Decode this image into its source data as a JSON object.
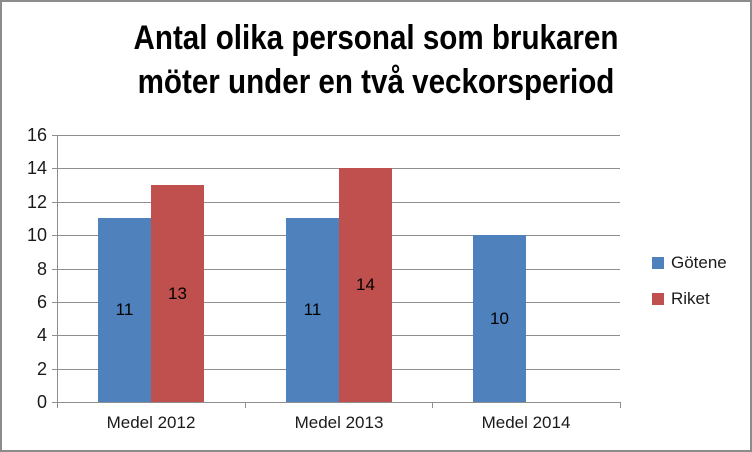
{
  "frame": {
    "border_color": "#8C8C8C",
    "background_color": "#FFFFFF"
  },
  "chart_data": {
    "type": "bar",
    "title": "Antal olika personal som brukaren möter under en två veckorsperiod",
    "title_lines": [
      "Antal olika personal som brukaren",
      "möter under en två veckorsperiod"
    ],
    "categories": [
      "Medel 2012",
      "Medel 2013",
      "Medel 2014"
    ],
    "series": [
      {
        "name": "Götene",
        "color": "#4F81BD",
        "values": [
          11,
          11,
          10
        ]
      },
      {
        "name": "Riket",
        "color": "#C0504D",
        "values": [
          13,
          14,
          null
        ]
      }
    ],
    "xlabel": "",
    "ylabel": "",
    "ylim": [
      0,
      16
    ],
    "yticks": [
      0,
      2,
      4,
      6,
      8,
      10,
      12,
      14,
      16
    ],
    "grid": true,
    "gridline_color": "#8E8E8E",
    "axis_color": "#8E8E8E",
    "data_labels": true,
    "data_label_color": "#000000",
    "legend_position": "right",
    "text_color": "#1a1a1a"
  }
}
